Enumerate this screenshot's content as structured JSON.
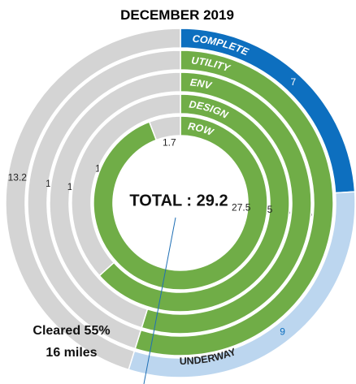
{
  "chart_data": {
    "type": "multi-ring-donut",
    "title": "DECEMBER 2019",
    "center_label": "TOTAL : 29.2",
    "series": [
      {
        "name": "COMPLETE",
        "values": [
          7,
          9,
          13.2
        ],
        "colors": [
          "#0d6fbf",
          "#bcd6ef",
          "#d4d4d4"
        ]
      },
      {
        "name": "UTILITY",
        "values": [
          16,
          13.2
        ],
        "colors": [
          "#70ad47",
          "#d4d4d4"
        ]
      },
      {
        "name": "ENV",
        "values": [
          16,
          13.2
        ],
        "colors": [
          "#70ad47",
          "#d4d4d4"
        ]
      },
      {
        "name": "DESIGN",
        "values": [
          18.5,
          10.7
        ],
        "colors": [
          "#70ad47",
          "#d4d4d4"
        ]
      },
      {
        "name": "ROW",
        "values": [
          27.5,
          1.7
        ],
        "colors": [
          "#70ad47",
          "#d4d4d4"
        ]
      }
    ],
    "segment_annotation": "UNDERWAY",
    "callout": [
      "Cleared 55%",
      "16 miles"
    ]
  }
}
